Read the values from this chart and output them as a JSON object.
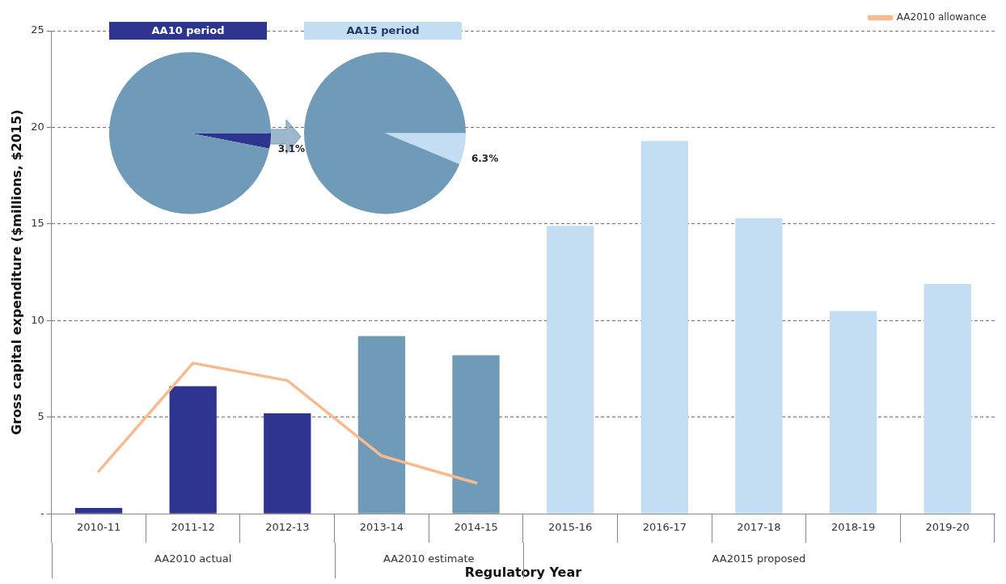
{
  "chart_data": [
    {
      "type": "bar",
      "xlabel": "Regulatory Year",
      "ylabel": "Gross capital expenditure ($millions, $2015)",
      "categories": [
        "2010-11",
        "2011-12",
        "2012-13",
        "2013-14",
        "2014-15",
        "2015-16",
        "2016-17",
        "2017-18",
        "2018-19",
        "2019-20"
      ],
      "series": [
        {
          "type": "bar",
          "color": "#2e3590",
          "values": [
            0.3,
            6.6,
            5.2,
            null,
            null,
            null,
            null,
            null,
            null,
            null
          ]
        },
        {
          "type": "bar",
          "color": "#6f9bb8",
          "values": [
            null,
            null,
            null,
            9.2,
            8.2,
            null,
            null,
            null,
            null,
            null
          ]
        },
        {
          "type": "bar",
          "color": "#c3ddf2",
          "values": [
            null,
            null,
            null,
            null,
            null,
            14.9,
            19.3,
            15.3,
            10.5,
            11.9
          ]
        },
        {
          "type": "line",
          "name": "AA2010 allowance",
          "color": "#f7bb8e",
          "values": [
            2.2,
            7.8,
            6.9,
            3.0,
            1.6,
            null,
            null,
            null,
            null,
            null
          ]
        }
      ],
      "ylim": [
        0,
        25
      ],
      "yticks": [
        {
          "value": 0,
          "label": "-"
        },
        5,
        10,
        15,
        20,
        25
      ],
      "grid": "y",
      "legend": "top right",
      "marker": "none",
      "annotations": [
        "AA2010 actual",
        "AA2010 estimate",
        "AA2015 proposed"
      ]
    },
    {
      "type": "pie",
      "title": "AA10 period",
      "categories": [
        null,
        null
      ],
      "values": [
        3.1,
        96.9
      ],
      "colors": [
        "#2e3590",
        "#6f9bb8"
      ],
      "value_labels": [
        "3.1%",
        null
      ]
    },
    {
      "type": "pie",
      "title": "AA15 period",
      "categories": [
        null,
        null
      ],
      "values": [
        6.3,
        93.7
      ],
      "colors": [
        "#c3ddf2",
        "#6f9bb8"
      ],
      "value_labels": [
        "6.3%",
        null
      ]
    }
  ]
}
